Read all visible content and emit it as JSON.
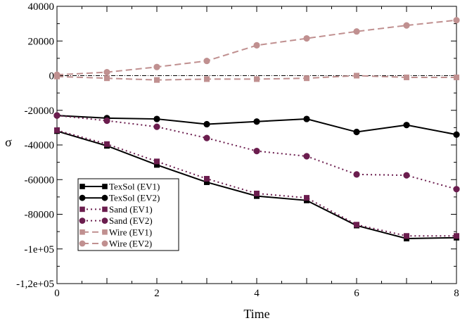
{
  "chart_data": {
    "type": "line",
    "xlabel": "Time",
    "ylabel": "σ",
    "xlim": [
      0,
      8
    ],
    "ylim": [
      -120000,
      40000
    ],
    "grid": false,
    "legend_position": "bottom-left",
    "x_ticks": [
      0,
      1,
      2,
      3,
      4,
      5,
      6,
      7,
      8
    ],
    "x_tick_labels": [
      "0",
      "",
      "2",
      "",
      "4",
      "",
      "6",
      "",
      "8"
    ],
    "y_ticks": [
      -120000,
      -100000,
      -80000,
      -60000,
      -40000,
      -20000,
      0,
      20000,
      40000
    ],
    "y_tick_labels": [
      "-1,2e+05",
      "-1e+05",
      "-80000",
      "-60000",
      "-40000",
      "-20000",
      "0",
      "20000",
      "40000"
    ],
    "reference_line": {
      "y": 0,
      "style": "dash-dot",
      "color": "#000000"
    },
    "x": [
      0,
      1,
      2,
      3,
      4,
      5,
      6,
      7,
      8
    ],
    "series": [
      {
        "name": "TexSol (EV1)",
        "color": "#000000",
        "marker": "square",
        "line": "solid",
        "values": [
          -32000,
          -40500,
          -51500,
          -61500,
          -69500,
          -72000,
          -86500,
          -94000,
          -93500
        ]
      },
      {
        "name": "TexSol (EV2)",
        "color": "#000000",
        "marker": "circle",
        "line": "solid",
        "values": [
          -23000,
          -24500,
          -25000,
          -28000,
          -26500,
          -25000,
          -32500,
          -28500,
          -34000
        ]
      },
      {
        "name": "Sand (EV1)",
        "color": "#6b1d4e",
        "marker": "square",
        "line": "dotted",
        "values": [
          -31500,
          -39500,
          -49500,
          -59500,
          -68000,
          -70500,
          -86000,
          -92500,
          -92500
        ]
      },
      {
        "name": "Sand (EV2)",
        "color": "#6b1d4e",
        "marker": "circle",
        "line": "dotted",
        "values": [
          -23000,
          -26000,
          -29500,
          -36000,
          -43500,
          -46500,
          -57000,
          -57500,
          -65500
        ]
      },
      {
        "name": "Wire (EV1)",
        "color": "#c09090",
        "marker": "square",
        "line": "dashed",
        "values": [
          -500,
          -1500,
          -2500,
          -2000,
          -2000,
          -1500,
          0,
          -1000,
          -1000
        ]
      },
      {
        "name": "Wire (EV2)",
        "color": "#c09090",
        "marker": "circle",
        "line": "dashed",
        "values": [
          500,
          2000,
          5000,
          8500,
          17500,
          21500,
          25500,
          29000,
          32000
        ]
      }
    ]
  }
}
